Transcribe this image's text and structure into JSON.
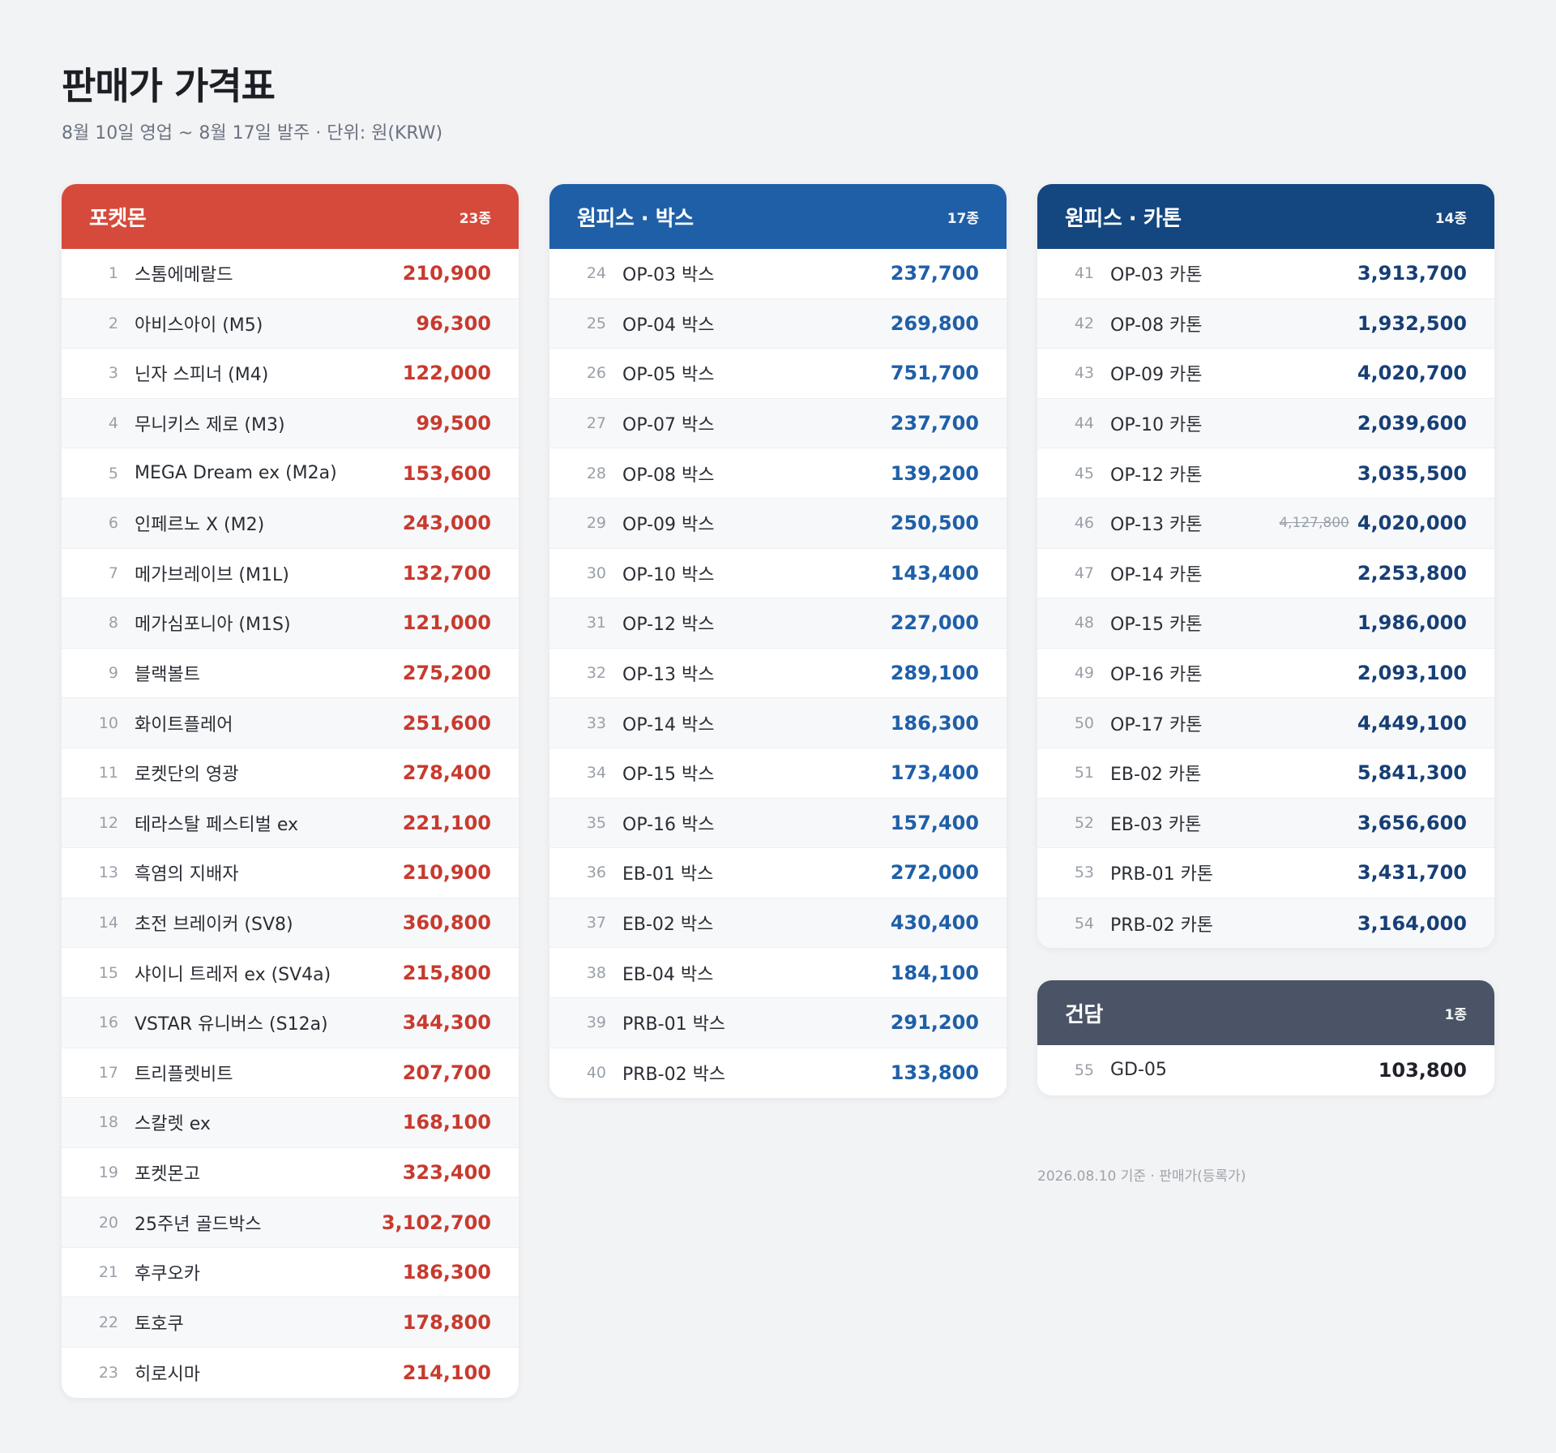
{
  "page": {
    "title": "판매가 가격표",
    "subtitle": "8월 10일 영업 ~ 8월 17일 발주  ·  단위: 원(KRW)",
    "footer": "2026.08.10 기준 · 판매가(등록가)"
  },
  "colors": {
    "pokemon_header": "#d64a3b",
    "pokemon_price": "#c83a2e",
    "op_box_header": "#1f5fa8",
    "op_box_price": "#1f5fa8",
    "op_carton_header": "#14467f",
    "op_carton_price": "#173f75",
    "gundam_header": "#4a5466",
    "gundam_price": "#1f2329"
  },
  "cards": [
    {
      "id": "pokemon",
      "title": "포켓몬",
      "count": "23종",
      "items": [
        {
          "no": "1",
          "name": "스톰에메랄드",
          "price": "210,900"
        },
        {
          "no": "2",
          "name": "아비스아이 (M5)",
          "price": "96,300"
        },
        {
          "no": "3",
          "name": "닌자 스피너 (M4)",
          "price": "122,000"
        },
        {
          "no": "4",
          "name": "무니키스 제로 (M3)",
          "price": "99,500"
        },
        {
          "no": "5",
          "name": "MEGA Dream ex (M2a)",
          "price": "153,600"
        },
        {
          "no": "6",
          "name": "인페르노 X (M2)",
          "price": "243,000"
        },
        {
          "no": "7",
          "name": "메가브레이브 (M1L)",
          "price": "132,700"
        },
        {
          "no": "8",
          "name": "메가심포니아 (M1S)",
          "price": "121,000"
        },
        {
          "no": "9",
          "name": "블랙볼트",
          "price": "275,200"
        },
        {
          "no": "10",
          "name": "화이트플레어",
          "price": "251,600"
        },
        {
          "no": "11",
          "name": "로켓단의 영광",
          "price": "278,400"
        },
        {
          "no": "12",
          "name": "테라스탈 페스티벌 ex",
          "price": "221,100"
        },
        {
          "no": "13",
          "name": "흑염의 지배자",
          "price": "210,900"
        },
        {
          "no": "14",
          "name": "초전 브레이커 (SV8)",
          "price": "360,800"
        },
        {
          "no": "15",
          "name": "샤이니 트레저 ex (SV4a)",
          "price": "215,800"
        },
        {
          "no": "16",
          "name": "VSTAR 유니버스 (S12a)",
          "price": "344,300"
        },
        {
          "no": "17",
          "name": "트리플렛비트",
          "price": "207,700"
        },
        {
          "no": "18",
          "name": "스칼렛 ex",
          "price": "168,100"
        },
        {
          "no": "19",
          "name": "포켓몬고",
          "price": "323,400"
        },
        {
          "no": "20",
          "name": "25주년 골드박스",
          "price": "3,102,700"
        },
        {
          "no": "21",
          "name": "후쿠오카",
          "price": "186,300"
        },
        {
          "no": "22",
          "name": "토호쿠",
          "price": "178,800"
        },
        {
          "no": "23",
          "name": "히로시마",
          "price": "214,100"
        }
      ]
    },
    {
      "id": "op-box",
      "title": "원피스 · 박스",
      "count": "17종",
      "items": [
        {
          "no": "24",
          "name": "OP-03 박스",
          "price": "237,700"
        },
        {
          "no": "25",
          "name": "OP-04 박스",
          "price": "269,800"
        },
        {
          "no": "26",
          "name": "OP-05 박스",
          "price": "751,700"
        },
        {
          "no": "27",
          "name": "OP-07 박스",
          "price": "237,700"
        },
        {
          "no": "28",
          "name": "OP-08 박스",
          "price": "139,200"
        },
        {
          "no": "29",
          "name": "OP-09 박스",
          "price": "250,500"
        },
        {
          "no": "30",
          "name": "OP-10 박스",
          "price": "143,400"
        },
        {
          "no": "31",
          "name": "OP-12 박스",
          "price": "227,000"
        },
        {
          "no": "32",
          "name": "OP-13 박스",
          "price": "289,100"
        },
        {
          "no": "33",
          "name": "OP-14 박스",
          "price": "186,300"
        },
        {
          "no": "34",
          "name": "OP-15 박스",
          "price": "173,400"
        },
        {
          "no": "35",
          "name": "OP-16 박스",
          "price": "157,400"
        },
        {
          "no": "36",
          "name": "EB-01 박스",
          "price": "272,000"
        },
        {
          "no": "37",
          "name": "EB-02 박스",
          "price": "430,400"
        },
        {
          "no": "38",
          "name": "EB-04 박스",
          "price": "184,100"
        },
        {
          "no": "39",
          "name": "PRB-01 박스",
          "price": "291,200"
        },
        {
          "no": "40",
          "name": "PRB-02 박스",
          "price": "133,800"
        }
      ]
    },
    {
      "id": "op-carton",
      "title": "원피스 · 카톤",
      "count": "14종",
      "items": [
        {
          "no": "41",
          "name": "OP-03 카톤",
          "price": "3,913,700"
        },
        {
          "no": "42",
          "name": "OP-08 카톤",
          "price": "1,932,500"
        },
        {
          "no": "43",
          "name": "OP-09 카톤",
          "price": "4,020,700"
        },
        {
          "no": "44",
          "name": "OP-10 카톤",
          "price": "2,039,600"
        },
        {
          "no": "45",
          "name": "OP-12 카톤",
          "price": "3,035,500"
        },
        {
          "no": "46",
          "name": "OP-13 카톤",
          "old_price": "4,127,800",
          "price": "4,020,000"
        },
        {
          "no": "47",
          "name": "OP-14 카톤",
          "price": "2,253,800"
        },
        {
          "no": "48",
          "name": "OP-15 카톤",
          "price": "1,986,000"
        },
        {
          "no": "49",
          "name": "OP-16 카톤",
          "price": "2,093,100"
        },
        {
          "no": "50",
          "name": "OP-17 카톤",
          "price": "4,449,100"
        },
        {
          "no": "51",
          "name": "EB-02 카톤",
          "price": "5,841,300"
        },
        {
          "no": "52",
          "name": "EB-03 카톤",
          "price": "3,656,600"
        },
        {
          "no": "53",
          "name": "PRB-01 카톤",
          "price": "3,431,700"
        },
        {
          "no": "54",
          "name": "PRB-02 카톤",
          "price": "3,164,000"
        }
      ]
    },
    {
      "id": "gundam",
      "title": "건담",
      "count": "1종",
      "items": [
        {
          "no": "55",
          "name": "GD-05",
          "price": "103,800"
        }
      ]
    }
  ]
}
